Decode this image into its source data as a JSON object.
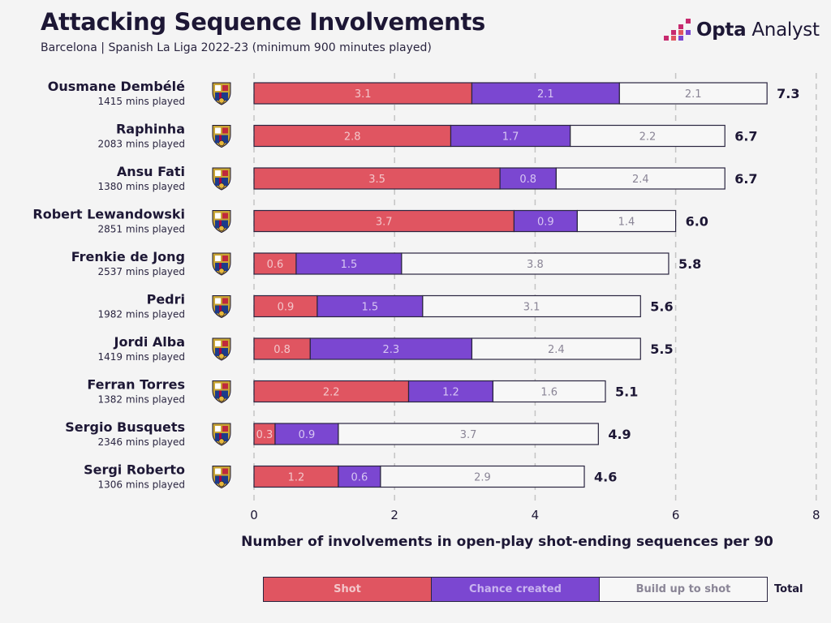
{
  "header": {
    "title": "Attacking Sequence Involvements",
    "subtitle": "Barcelona | Spanish La Liga 2022-23 (minimum 900 minutes played)",
    "brand_bold": "Opta",
    "brand_light": "Analyst"
  },
  "colors": {
    "shot": "#e05561",
    "chance": "#7b47d1",
    "build": "#f7f7f7",
    "grid": "#c4c4c4",
    "text_dark": "#1d1735"
  },
  "legend": {
    "shot": "Shot",
    "chance": "Chance created",
    "build": "Build up to shot",
    "total": "Total"
  },
  "chart_data": {
    "type": "bar",
    "orientation": "horizontal",
    "stacked": true,
    "title": "Attacking Sequence Involvements",
    "xlabel": "Number of involvements in open-play shot-ending sequences per 90",
    "ylabel": "",
    "xlim": [
      0,
      8
    ],
    "xticks": [
      0,
      2,
      4,
      6,
      8
    ],
    "grid": "vertical dashed",
    "legend_position": "bottom",
    "categories": [
      "Ousmane Dembélé",
      "Raphinha",
      "Ansu Fati",
      "Robert Lewandowski",
      "Frenkie de Jong",
      "Pedri",
      "Jordi Alba",
      "Ferran Torres",
      "Sergio Busquets",
      "Sergi Roberto"
    ],
    "minutes": [
      "1415 mins played",
      "2083 mins played",
      "1380 mins played",
      "2851 mins played",
      "2537 mins played",
      "1982 mins played",
      "1419 mins played",
      "1382 mins played",
      "2346 mins played",
      "1306 mins played"
    ],
    "series": [
      {
        "name": "Shot",
        "values": [
          3.1,
          2.8,
          3.5,
          3.7,
          0.6,
          0.9,
          0.8,
          2.2,
          0.3,
          1.2
        ]
      },
      {
        "name": "Chance created",
        "values": [
          2.1,
          1.7,
          0.8,
          0.9,
          1.5,
          1.5,
          2.3,
          1.2,
          0.9,
          0.6
        ]
      },
      {
        "name": "Build up to shot",
        "values": [
          2.1,
          2.2,
          2.4,
          1.4,
          3.8,
          3.1,
          2.4,
          1.6,
          3.7,
          2.9
        ]
      }
    ],
    "totals": [
      "7.3",
      "6.7",
      "6.7",
      "6.0",
      "5.8",
      "5.6",
      "5.5",
      "5.1",
      "4.9",
      "4.6"
    ]
  }
}
